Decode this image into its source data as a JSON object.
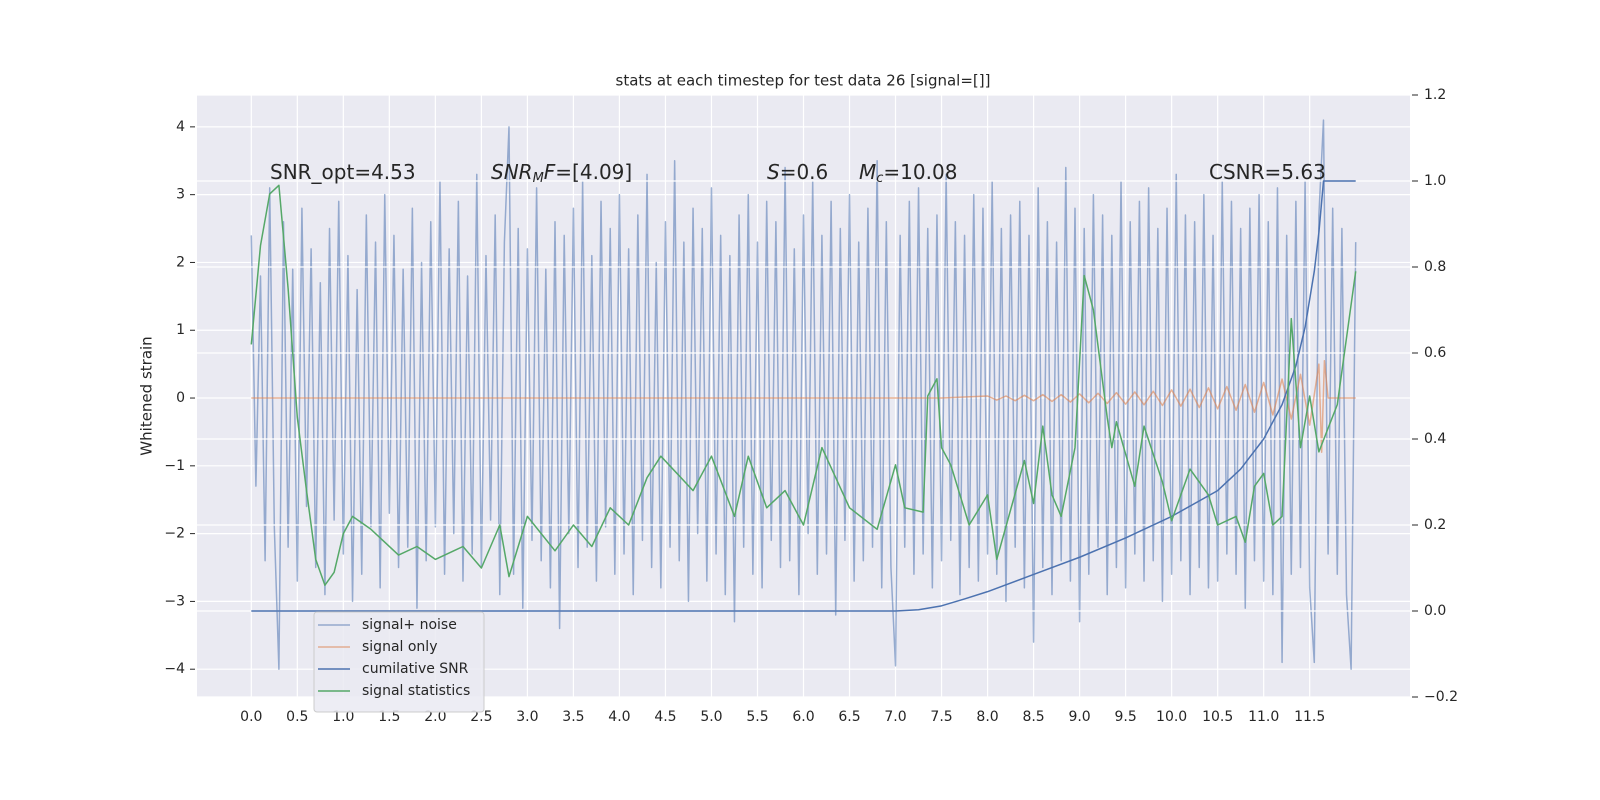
{
  "chart_data": {
    "type": "line",
    "title": "stats at each timestep for test data 26 [signal=[]]",
    "ylabel": "Whitened strain",
    "xlim": [
      -0.59,
      12.59
    ],
    "ylim": [
      -4.41,
      4.47
    ],
    "y2lim": [
      -0.2,
      1.2
    ],
    "xticks": [
      {
        "value": 0,
        "label": "0.0"
      },
      0.5,
      {
        "value": 1,
        "label": "1.0"
      },
      1.5,
      {
        "value": 2,
        "label": "2.0"
      },
      2.5,
      {
        "value": 3,
        "label": "3.0"
      },
      3.5,
      {
        "value": 4,
        "label": "4.0"
      },
      4.5,
      {
        "value": 5,
        "label": "5.0"
      },
      5.5,
      {
        "value": 6,
        "label": "6.0"
      },
      6.5,
      {
        "value": 7,
        "label": "7.0"
      },
      7.5,
      {
        "value": 8,
        "label": "8.0"
      },
      8.5,
      {
        "value": 9,
        "label": "9.0"
      },
      9.5,
      {
        "value": 10,
        "label": "10.0"
      },
      10.5,
      {
        "value": 11,
        "label": "11.0"
      },
      11.5
    ],
    "yticks": [
      {
        "value": -4,
        "label": "−4"
      },
      {
        "value": -3,
        "label": "−3"
      },
      {
        "value": -2,
        "label": "−2"
      },
      {
        "value": -1,
        "label": "−1"
      },
      0,
      1,
      2,
      3,
      4
    ],
    "y2ticks": [
      {
        "value": -0.2,
        "label": "−0.2"
      },
      {
        "value": 0,
        "label": "0.0"
      },
      0.2,
      0.4,
      0.6,
      0.8,
      {
        "value": 1,
        "label": "1.0"
      },
      1.2
    ],
    "grid": true,
    "legend": "lower left",
    "annotations": [
      {
        "parts": [
          {
            "text": "SNR_opt=4.53"
          }
        ]
      },
      {
        "parts": [
          {
            "text": "SNR",
            "style": "italic"
          },
          {
            "text": "M",
            "style": "sub"
          },
          {
            "text": "F",
            "style": "italic"
          },
          {
            "text": "=[4.09]"
          }
        ]
      },
      {
        "parts": [
          {
            "text": "S",
            "style": "italic"
          },
          {
            "text": "=0.6"
          }
        ]
      },
      {
        "parts": [
          {
            "text": "M",
            "style": "italic"
          },
          {
            "text": "c",
            "style": "sub"
          },
          {
            "text": "=10.08"
          }
        ]
      },
      {
        "parts": [
          {
            "text": "CSNR=5.63"
          }
        ]
      }
    ],
    "series": [
      {
        "name": "signal+ noise",
        "color": "#4c72b0",
        "alpha": 0.55,
        "x": [
          0,
          0.05,
          0.1,
          0.15,
          0.2,
          0.25,
          0.3,
          0.35,
          0.4,
          0.45,
          0.5,
          0.55,
          0.6,
          0.65,
          0.7,
          0.75,
          0.8,
          0.85,
          0.9,
          0.95,
          1,
          1.05,
          1.1,
          1.15,
          1.2,
          1.25,
          1.3,
          1.35,
          1.4,
          1.45,
          1.5,
          1.55,
          1.6,
          1.65,
          1.7,
          1.75,
          1.8,
          1.85,
          1.9,
          1.95,
          2,
          2.05,
          2.1,
          2.15,
          2.2,
          2.25,
          2.3,
          2.35,
          2.4,
          2.45,
          2.5,
          2.55,
          2.6,
          2.65,
          2.7,
          2.75,
          2.8,
          2.85,
          2.9,
          2.95,
          3,
          3.05,
          3.1,
          3.15,
          3.2,
          3.25,
          3.3,
          3.35,
          3.4,
          3.45,
          3.5,
          3.55,
          3.6,
          3.65,
          3.7,
          3.75,
          3.8,
          3.85,
          3.9,
          3.95,
          4,
          4.05,
          4.1,
          4.15,
          4.2,
          4.25,
          4.3,
          4.35,
          4.4,
          4.45,
          4.5,
          4.55,
          4.6,
          4.65,
          4.7,
          4.75,
          4.8,
          4.85,
          4.9,
          4.95,
          5,
          5.05,
          5.1,
          5.15,
          5.2,
          5.25,
          5.3,
          5.35,
          5.4,
          5.45,
          5.5,
          5.55,
          5.6,
          5.65,
          5.7,
          5.75,
          5.8,
          5.85,
          5.9,
          5.95,
          6,
          6.05,
          6.1,
          6.15,
          6.2,
          6.25,
          6.3,
          6.35,
          6.4,
          6.45,
          6.5,
          6.55,
          6.6,
          6.65,
          6.7,
          6.75,
          6.8,
          6.85,
          6.9,
          6.95,
          7,
          7.05,
          7.1,
          7.15,
          7.2,
          7.25,
          7.3,
          7.35,
          7.4,
          7.45,
          7.5,
          7.55,
          7.6,
          7.65,
          7.7,
          7.75,
          7.8,
          7.85,
          7.9,
          7.95,
          8,
          8.05,
          8.1,
          8.15,
          8.2,
          8.25,
          8.3,
          8.35,
          8.4,
          8.45,
          8.5,
          8.55,
          8.6,
          8.65,
          8.7,
          8.75,
          8.8,
          8.85,
          8.9,
          8.95,
          9,
          9.05,
          9.1,
          9.15,
          9.2,
          9.25,
          9.3,
          9.35,
          9.4,
          9.45,
          9.5,
          9.55,
          9.6,
          9.65,
          9.7,
          9.75,
          9.8,
          9.85,
          9.9,
          9.95,
          10,
          10.05,
          10.1,
          10.15,
          10.2,
          10.25,
          10.3,
          10.35,
          10.4,
          10.45,
          10.5,
          10.55,
          10.6,
          10.65,
          10.7,
          10.75,
          10.8,
          10.85,
          10.9,
          10.95,
          11,
          11.05,
          11.1,
          11.15,
          11.2,
          11.25,
          11.3,
          11.35,
          11.4,
          11.45,
          11.5,
          11.55,
          11.6,
          11.65,
          11.7,
          11.75,
          11.8,
          11.85,
          11.9,
          11.95,
          12
        ],
        "values": [
          2.4,
          -1.3,
          1.8,
          -2.4,
          3.1,
          -1.9,
          -4.0,
          2.6,
          -2.2,
          1.9,
          -2.7,
          2.8,
          -1.6,
          2.2,
          -2.5,
          1.7,
          -2.9,
          2.5,
          -1.8,
          2.9,
          -2.3,
          2.1,
          -3.0,
          1.6,
          -2.6,
          2.7,
          -1.9,
          2.3,
          -2.8,
          3.0,
          -1.7,
          2.4,
          -2.5,
          1.9,
          -2.2,
          2.8,
          -3.1,
          2.0,
          -2.4,
          2.6,
          -1.9,
          3.2,
          -2.6,
          2.2,
          -2.0,
          2.9,
          -2.7,
          1.8,
          -2.3,
          3.3,
          -2.5,
          2.1,
          -1.8,
          2.7,
          -2.9,
          2.3,
          4.0,
          -2.6,
          2.5,
          -3.1,
          2.2,
          -2.1,
          3.1,
          -2.4,
          1.9,
          -2.8,
          2.6,
          -3.4,
          2.4,
          -2.0,
          2.8,
          -2.5,
          3.2,
          -2.2,
          2.1,
          -2.7,
          2.9,
          -1.9,
          2.5,
          -2.6,
          3.0,
          -2.3,
          2.2,
          -2.9,
          2.7,
          -2.1,
          3.3,
          -2.5,
          2.0,
          -2.8,
          2.6,
          -2.2,
          3.5,
          -2.4,
          2.3,
          -3.0,
          2.8,
          -2.0,
          2.5,
          -2.7,
          3.1,
          -2.3,
          2.4,
          -2.9,
          2.1,
          -3.3,
          2.7,
          -2.2,
          3.0,
          -2.6,
          2.3,
          -2.8,
          2.9,
          -2.1,
          2.6,
          -2.5,
          3.4,
          -2.4,
          2.2,
          -2.9,
          2.7,
          -2.0,
          3.2,
          -2.6,
          2.4,
          -2.3,
          2.9,
          -3.2,
          2.5,
          -2.1,
          3.0,
          -2.7,
          2.3,
          -2.4,
          2.8,
          -2.2,
          3.5,
          -2.8,
          2.6,
          -2.5,
          -3.95,
          2.4,
          -2.2,
          2.9,
          -2.6,
          3.1,
          -2.3,
          2.5,
          -2.8,
          2.7,
          -2.4,
          3.3,
          -2.1,
          2.6,
          -2.9,
          2.4,
          -2.5,
          3.0,
          -2.7,
          2.8,
          -2.3,
          3.2,
          -2.6,
          2.5,
          -3.0,
          2.7,
          -2.2,
          2.9,
          -2.8,
          2.4,
          -3.6,
          3.1,
          -2.5,
          2.6,
          -2.9,
          2.3,
          -2.4,
          3.4,
          -2.7,
          2.8,
          -3.3,
          2.5,
          -2.6,
          3.0,
          -2.2,
          2.7,
          -2.9,
          2.4,
          -2.5,
          3.2,
          -2.8,
          2.6,
          -2.3,
          2.9,
          -2.7,
          3.1,
          -2.4,
          2.5,
          -3.0,
          2.8,
          -2.6,
          3.3,
          -2.4,
          2.7,
          -2.9,
          2.6,
          -2.5,
          3.0,
          -2.8,
          2.4,
          -2.7,
          3.2,
          -2.3,
          2.9,
          -2.6,
          2.5,
          -3.1,
          2.8,
          -2.4,
          3.0,
          -2.7,
          2.6,
          -2.9,
          3.1,
          -3.9,
          2.4,
          -2.6,
          2.9,
          -2.5,
          3.2,
          -2.8,
          -3.9,
          2.7,
          4.1,
          -2.3,
          2.8,
          -2.6,
          2.5,
          -2.9,
          -4.0,
          2.3
        ]
      },
      {
        "name": "signal only",
        "color": "#dd8452",
        "alpha": 0.6,
        "x": [
          0,
          7.5,
          8,
          8.1,
          8.2,
          8.3,
          8.4,
          8.5,
          8.6,
          8.7,
          8.8,
          8.9,
          9,
          9.1,
          9.2,
          9.3,
          9.4,
          9.5,
          9.6,
          9.7,
          9.8,
          9.9,
          10,
          10.1,
          10.2,
          10.3,
          10.4,
          10.5,
          10.6,
          10.7,
          10.8,
          10.9,
          11,
          11.1,
          11.2,
          11.3,
          11.4,
          11.5,
          11.6,
          11.63,
          11.66,
          11.7,
          12
        ],
        "values": [
          0,
          0,
          0.03,
          -0.03,
          0.03,
          -0.04,
          0.04,
          -0.04,
          0.05,
          -0.05,
          0.05,
          -0.06,
          0.06,
          -0.07,
          0.07,
          -0.08,
          0.08,
          -0.09,
          0.09,
          -0.1,
          0.1,
          -0.11,
          0.12,
          -0.12,
          0.13,
          -0.14,
          0.15,
          -0.16,
          0.17,
          -0.18,
          0.2,
          -0.21,
          0.23,
          -0.25,
          0.28,
          -0.31,
          0.35,
          -0.4,
          0.5,
          -0.8,
          0.55,
          0,
          0
        ]
      },
      {
        "name": "cumilative SNR",
        "color": "#4c72b0",
        "alpha": 1,
        "axis": "y2",
        "x": [
          0,
          7,
          7.25,
          7.5,
          7.75,
          8,
          8.5,
          9,
          9.5,
          10,
          10.5,
          10.75,
          11,
          11.2,
          11.35,
          11.45,
          11.55,
          11.6,
          11.65,
          12
        ],
        "values": [
          0,
          0,
          0.003,
          0.012,
          0.028,
          0.045,
          0.085,
          0.125,
          0.17,
          0.22,
          0.28,
          0.33,
          0.4,
          0.48,
          0.57,
          0.66,
          0.79,
          0.88,
          1.0,
          1.0
        ]
      },
      {
        "name": "signal statistics",
        "color": "#55a868",
        "alpha": 1,
        "axis": "y2",
        "x": [
          0,
          0.1,
          0.2,
          0.3,
          0.4,
          0.5,
          0.6,
          0.7,
          0.8,
          0.9,
          1,
          1.1,
          1.3,
          1.6,
          1.8,
          2,
          2.2,
          2.3,
          2.5,
          2.7,
          2.8,
          3,
          3.3,
          3.5,
          3.7,
          3.9,
          4.1,
          4.3,
          4.45,
          4.8,
          5,
          5.25,
          5.4,
          5.6,
          5.8,
          6,
          6.2,
          6.5,
          6.8,
          7,
          7.1,
          7.3,
          7.35,
          7.45,
          7.5,
          7.6,
          7.8,
          8,
          8.1,
          8.4,
          8.5,
          8.6,
          8.7,
          8.8,
          8.95,
          9.05,
          9.15,
          9.3,
          9.35,
          9.4,
          9.6,
          9.7,
          9.9,
          10,
          10.2,
          10.4,
          10.5,
          10.7,
          10.8,
          10.9,
          11,
          11.1,
          11.2,
          11.3,
          11.4,
          11.5,
          11.6,
          11.8,
          12
        ],
        "values": [
          0.62,
          0.85,
          0.97,
          0.99,
          0.75,
          0.45,
          0.28,
          0.12,
          0.06,
          0.09,
          0.18,
          0.22,
          0.19,
          0.13,
          0.15,
          0.12,
          0.14,
          0.15,
          0.1,
          0.2,
          0.08,
          0.22,
          0.14,
          0.2,
          0.15,
          0.24,
          0.2,
          0.31,
          0.36,
          0.28,
          0.36,
          0.22,
          0.36,
          0.24,
          0.28,
          0.2,
          0.38,
          0.24,
          0.19,
          0.34,
          0.24,
          0.23,
          0.5,
          0.54,
          0.38,
          0.34,
          0.2,
          0.27,
          0.12,
          0.35,
          0.25,
          0.43,
          0.27,
          0.22,
          0.38,
          0.78,
          0.7,
          0.45,
          0.38,
          0.44,
          0.29,
          0.43,
          0.3,
          0.21,
          0.33,
          0.27,
          0.2,
          0.22,
          0.16,
          0.29,
          0.32,
          0.2,
          0.22,
          0.68,
          0.38,
          0.5,
          0.37,
          0.48,
          0.79
        ]
      }
    ]
  }
}
